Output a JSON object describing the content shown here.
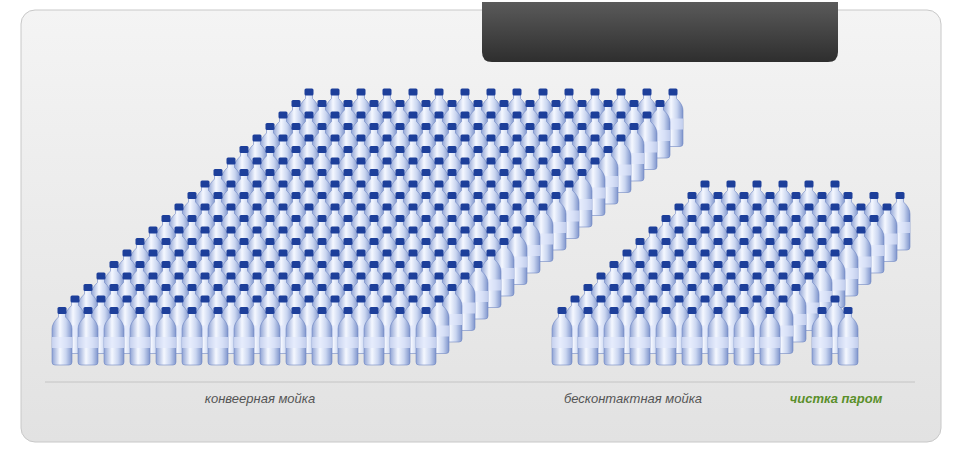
{
  "chart_data": {
    "type": "pictogram",
    "categories": [
      "конвеерная мойка",
      "бесконтактная мойка",
      "чистка паром"
    ],
    "values": [
      300,
      105,
      3
    ],
    "color": "#1d3f9a",
    "tick_labels": "x"
  }
}
